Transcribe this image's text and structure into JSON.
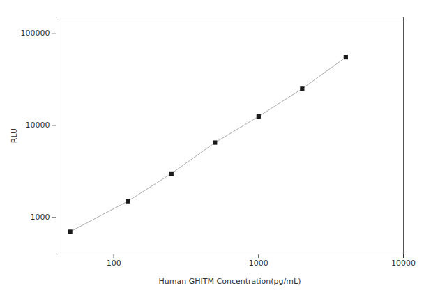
{
  "chart_data": {
    "type": "line",
    "x": [
      50,
      125,
      250,
      500,
      1000,
      2000,
      4000
    ],
    "values": [
      700,
      1500,
      3000,
      6500,
      12500,
      25000,
      55000
    ],
    "xlabel": "Human GHITM Concentration(pg/mL)",
    "ylabel": "RLU",
    "xlim": [
      40,
      10000
    ],
    "ylim": [
      400,
      150000
    ],
    "xticks": [
      100,
      1000,
      10000
    ],
    "yticks": [
      1000,
      10000,
      100000
    ],
    "log": true,
    "grid": false,
    "color": "#aaaaaa",
    "colors": [
      "#1a1a1a",
      "#1a1a1a",
      "#1a1a1a",
      "#1a1a1a",
      "#1a1a1a",
      "#1a1a1a",
      "#1a1a1a"
    ],
    "marker": "square"
  }
}
